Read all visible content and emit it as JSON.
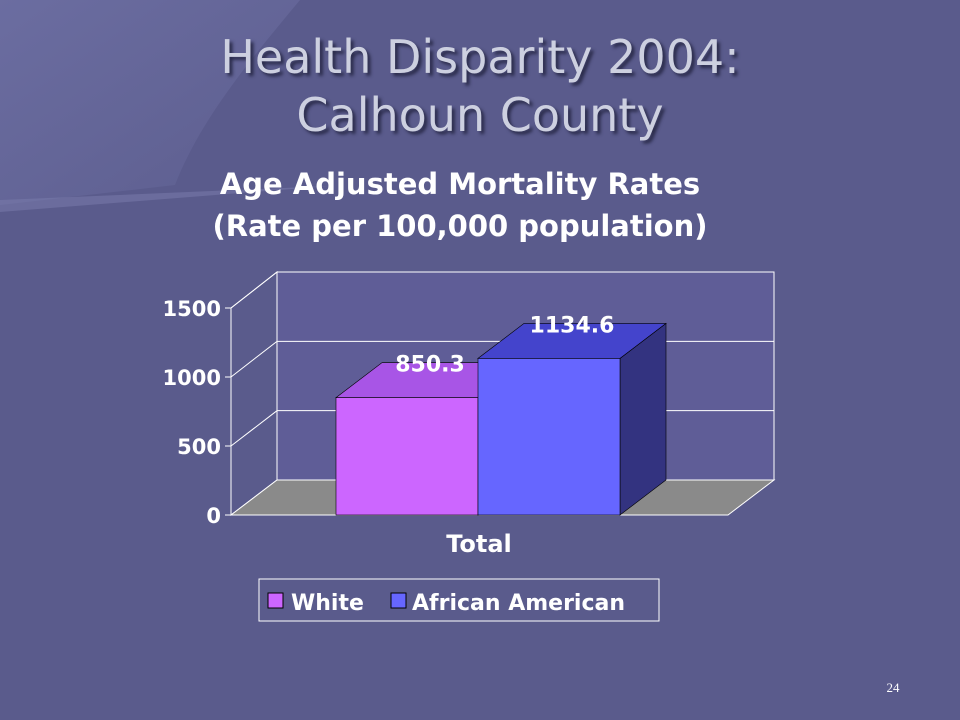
{
  "slide": {
    "title_line1": "Health Disparity 2004:",
    "title_line2": "Calhoun County",
    "page_number": "24"
  },
  "chart_data": {
    "type": "bar",
    "title": "Age Adjusted Mortality Rates",
    "subtitle": "(Rate per 100,000 population)",
    "categories": [
      "Total"
    ],
    "series": [
      {
        "name": "White",
        "values": [
          850.3
        ],
        "color": "#cc66ff"
      },
      {
        "name": "African American",
        "values": [
          1134.6
        ],
        "color": "#6666ff"
      }
    ],
    "ylim": [
      0,
      1500
    ],
    "yticks": [
      0,
      500,
      1000,
      1500
    ],
    "data_labels": [
      "850.3",
      "1134.6"
    ],
    "grid": true,
    "three_d": true,
    "legend": "bottom"
  }
}
